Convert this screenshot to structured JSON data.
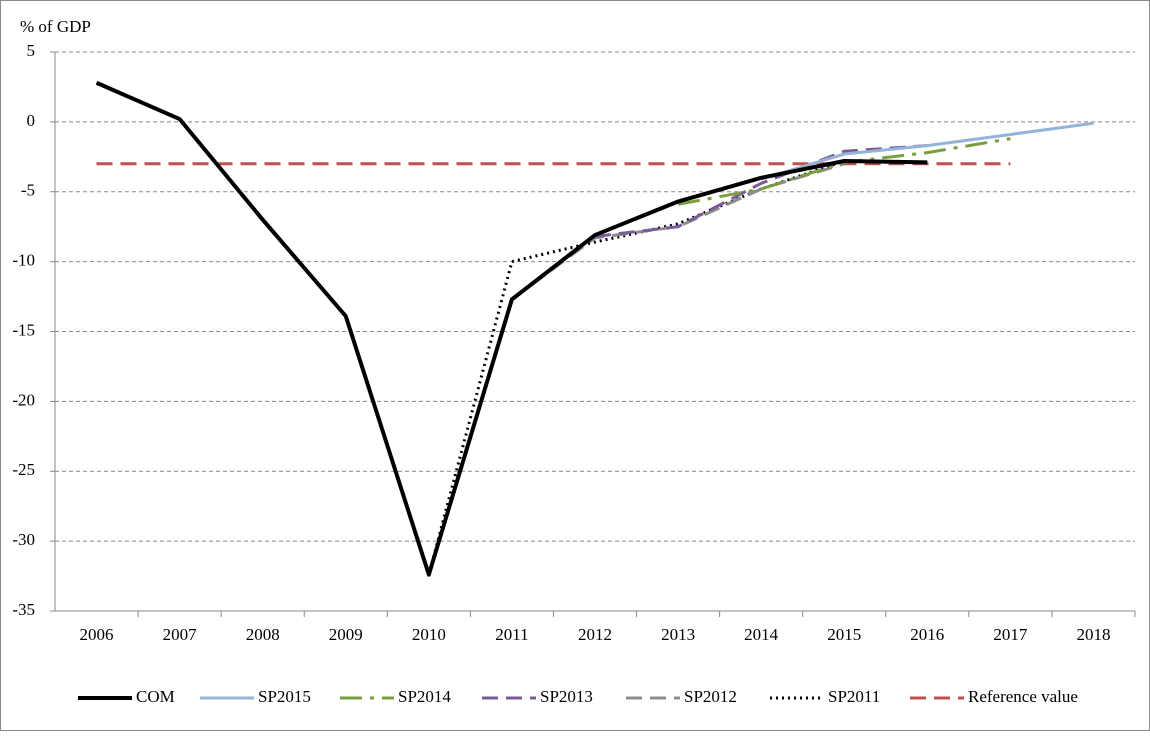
{
  "chart_data": {
    "type": "line",
    "y_label": "% of GDP",
    "categories": [
      "2006",
      "2007",
      "2008",
      "2009",
      "2010",
      "2011",
      "2012",
      "2013",
      "2014",
      "2015",
      "2016",
      "2017",
      "2018"
    ],
    "ylim": [
      -35,
      5
    ],
    "yticks": [
      -35,
      -30,
      -25,
      -20,
      -15,
      -10,
      -5,
      0,
      5
    ],
    "grid": true,
    "legend": "bottom",
    "series": [
      {
        "name": "COM",
        "color": "#000000",
        "dash": "solid",
        "values": [
          2.8,
          0.2,
          -7.0,
          -13.9,
          -32.4,
          -12.7,
          -8.1,
          -5.7,
          -4.0,
          -2.8,
          -2.9,
          null,
          null
        ]
      },
      {
        "name": "SP2015",
        "color": "#95b3d7",
        "dash": "solid",
        "values": [
          null,
          null,
          null,
          null,
          null,
          null,
          null,
          null,
          -4.1,
          -2.3,
          -1.7,
          -0.9,
          -0.1
        ]
      },
      {
        "name": "SP2014",
        "color": "#77a03c",
        "dash": "dash-dot",
        "values": [
          null,
          null,
          null,
          null,
          null,
          null,
          null,
          -5.9,
          -4.8,
          -2.9,
          -2.2,
          -1.2,
          null
        ]
      },
      {
        "name": "SP2013",
        "color": "#7a5c99",
        "dash": "dash",
        "values": [
          null,
          null,
          null,
          null,
          null,
          null,
          -8.2,
          -7.5,
          -4.4,
          -2.1,
          -1.7,
          null,
          null
        ]
      },
      {
        "name": "SP2012",
        "color": "#8c8c8c",
        "dash": "dash",
        "values": [
          null,
          null,
          null,
          null,
          -32.4,
          -12.7,
          -8.3,
          -7.5,
          -4.8,
          -3.0,
          null,
          null,
          null
        ]
      },
      {
        "name": "SP2011",
        "color": "#000000",
        "dash": "dot",
        "values": [
          null,
          null,
          null,
          null,
          -32.4,
          -10.0,
          -8.6,
          -7.3,
          -4.8,
          -2.8,
          null,
          null,
          null
        ]
      },
      {
        "name": "Reference value",
        "color": "#c0504d",
        "dash": "dash",
        "values": [
          -3,
          -3,
          -3,
          -3,
          -3,
          -3,
          -3,
          -3,
          -3,
          -3,
          -3,
          -3,
          null
        ]
      }
    ]
  }
}
